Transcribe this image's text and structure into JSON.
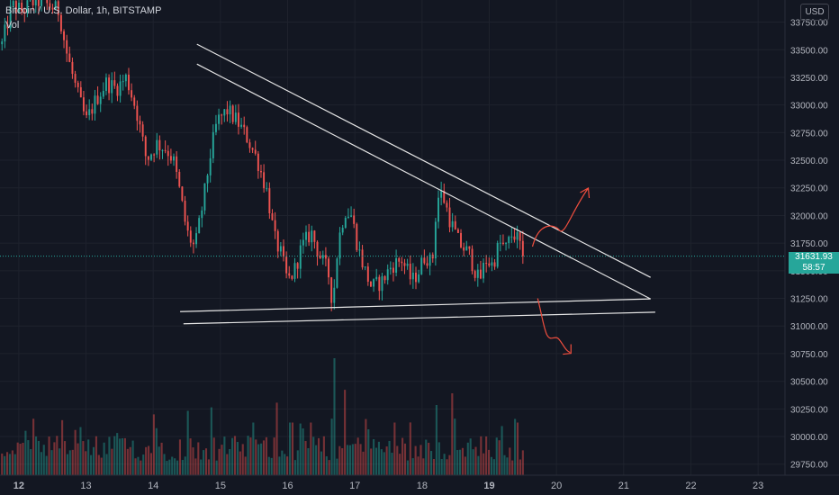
{
  "header": {
    "symbol": "Bitcoin / U.S. Dollar, 1h, BITSTAMP",
    "line2": "Vol",
    "currency": "USD"
  },
  "last_price": {
    "value": "31631.93",
    "countdown": "58:57"
  },
  "colors": {
    "background": "#131722",
    "up": "#26a69a",
    "down": "#ef5350",
    "grid": "#1e222d",
    "axis_text": "#b2b5be",
    "trendline": "#e6e6e6",
    "arrow": "#f04e3e"
  },
  "chart_data": {
    "type": "candlestick",
    "symbol": "BTCUSD",
    "exchange": "BITSTAMP",
    "timeframe": "1h",
    "y_axis": {
      "ticks": [
        29750,
        30000,
        30250,
        30500,
        30750,
        31000,
        31250,
        31500,
        31750,
        32000,
        32250,
        32500,
        32750,
        33000,
        33250,
        33500,
        33750
      ],
      "labels": [
        "29750.00",
        "30000.00",
        "30250.00",
        "30500.00",
        "30750.00",
        "31000.00",
        "31250.00",
        "31500.00",
        "31750.00",
        "32000.00",
        "32250.00",
        "32500.00",
        "32750.00",
        "33000.00",
        "33250.00",
        "33500.00",
        "33750.00"
      ],
      "ylim": [
        29650,
        33950
      ]
    },
    "x_axis": {
      "labels": [
        "12",
        "13",
        "14",
        "15",
        "16",
        "17",
        "18",
        "19",
        "20",
        "21",
        "22",
        "23"
      ],
      "day_range": [
        11.72,
        23.4
      ]
    },
    "last_price": 31631.93,
    "price_path": [
      [
        11.75,
        33550
      ],
      [
        11.9,
        33900
      ],
      [
        12.05,
        33850
      ],
      [
        12.25,
        33950
      ],
      [
        12.45,
        33900
      ],
      [
        12.6,
        33850
      ],
      [
        12.7,
        33500
      ],
      [
        12.85,
        33150
      ],
      [
        13.0,
        32850
      ],
      [
        13.15,
        33050
      ],
      [
        13.3,
        33200
      ],
      [
        13.45,
        33150
      ],
      [
        13.6,
        33250
      ],
      [
        13.75,
        32950
      ],
      [
        13.9,
        32500
      ],
      [
        14.05,
        32650
      ],
      [
        14.2,
        32600
      ],
      [
        14.3,
        32500
      ],
      [
        14.4,
        32200
      ],
      [
        14.5,
        31850
      ],
      [
        14.62,
        31700
      ],
      [
        14.75,
        32150
      ],
      [
        14.85,
        32550
      ],
      [
        14.95,
        32850
      ],
      [
        15.1,
        32950
      ],
      [
        15.25,
        32850
      ],
      [
        15.4,
        32700
      ],
      [
        15.55,
        32500
      ],
      [
        15.7,
        32200
      ],
      [
        15.8,
        31800
      ],
      [
        15.9,
        31650
      ],
      [
        16.0,
        31400
      ],
      [
        16.1,
        31500
      ],
      [
        16.2,
        31700
      ],
      [
        16.35,
        31850
      ],
      [
        16.5,
        31600
      ],
      [
        16.6,
        31500
      ],
      [
        16.67,
        31200
      ],
      [
        16.75,
        31750
      ],
      [
        16.85,
        32050
      ],
      [
        16.95,
        32000
      ],
      [
        17.05,
        31700
      ],
      [
        17.15,
        31500
      ],
      [
        17.25,
        31350
      ],
      [
        17.4,
        31400
      ],
      [
        17.55,
        31550
      ],
      [
        17.7,
        31600
      ],
      [
        17.85,
        31400
      ],
      [
        17.95,
        31500
      ],
      [
        18.05,
        31650
      ],
      [
        18.15,
        31550
      ],
      [
        18.22,
        32150
      ],
      [
        18.3,
        32200
      ],
      [
        18.42,
        31950
      ],
      [
        18.55,
        31750
      ],
      [
        18.7,
        31650
      ],
      [
        18.85,
        31400
      ],
      [
        18.95,
        31600
      ],
      [
        19.05,
        31550
      ],
      [
        19.15,
        31750
      ],
      [
        19.25,
        31700
      ],
      [
        19.35,
        31850
      ],
      [
        19.45,
        31750
      ],
      [
        19.5,
        31631.93
      ]
    ],
    "volume": {
      "bars": 200,
      "start_day": 11.75,
      "end_day": 19.5,
      "scale_max": 1.0,
      "spikes": [
        [
          14.0,
          0.52
        ],
        [
          14.5,
          0.55
        ],
        [
          14.85,
          0.58
        ],
        [
          15.5,
          0.45
        ],
        [
          15.85,
          0.62
        ],
        [
          16.05,
          0.45
        ],
        [
          16.35,
          0.45
        ],
        [
          16.7,
          1.0
        ],
        [
          16.85,
          0.58
        ],
        [
          17.15,
          0.48
        ],
        [
          17.6,
          0.45
        ],
        [
          18.2,
          0.6
        ],
        [
          18.45,
          0.55
        ],
        [
          19.2,
          0.42
        ],
        [
          19.42,
          0.45
        ]
      ]
    },
    "annotations": [
      {
        "type": "trendline",
        "name": "upper-resistance-outer",
        "from": [
          14.65,
          33550
        ],
        "to": [
          21.4,
          31440
        ]
      },
      {
        "type": "trendline",
        "name": "upper-resistance-inner",
        "from": [
          14.65,
          33370
        ],
        "to": [
          21.4,
          31245
        ]
      },
      {
        "type": "trendline",
        "name": "lower-support-upper",
        "from": [
          14.4,
          31130
        ],
        "to": [
          21.4,
          31245
        ]
      },
      {
        "type": "trendline",
        "name": "lower-support-lower",
        "from": [
          14.45,
          31020
        ],
        "to": [
          21.47,
          31125
        ]
      },
      {
        "type": "arrow",
        "name": "breakout-up-arrow",
        "direction": "up"
      },
      {
        "type": "arrow",
        "name": "breakdown-down-arrow",
        "direction": "down"
      }
    ]
  }
}
